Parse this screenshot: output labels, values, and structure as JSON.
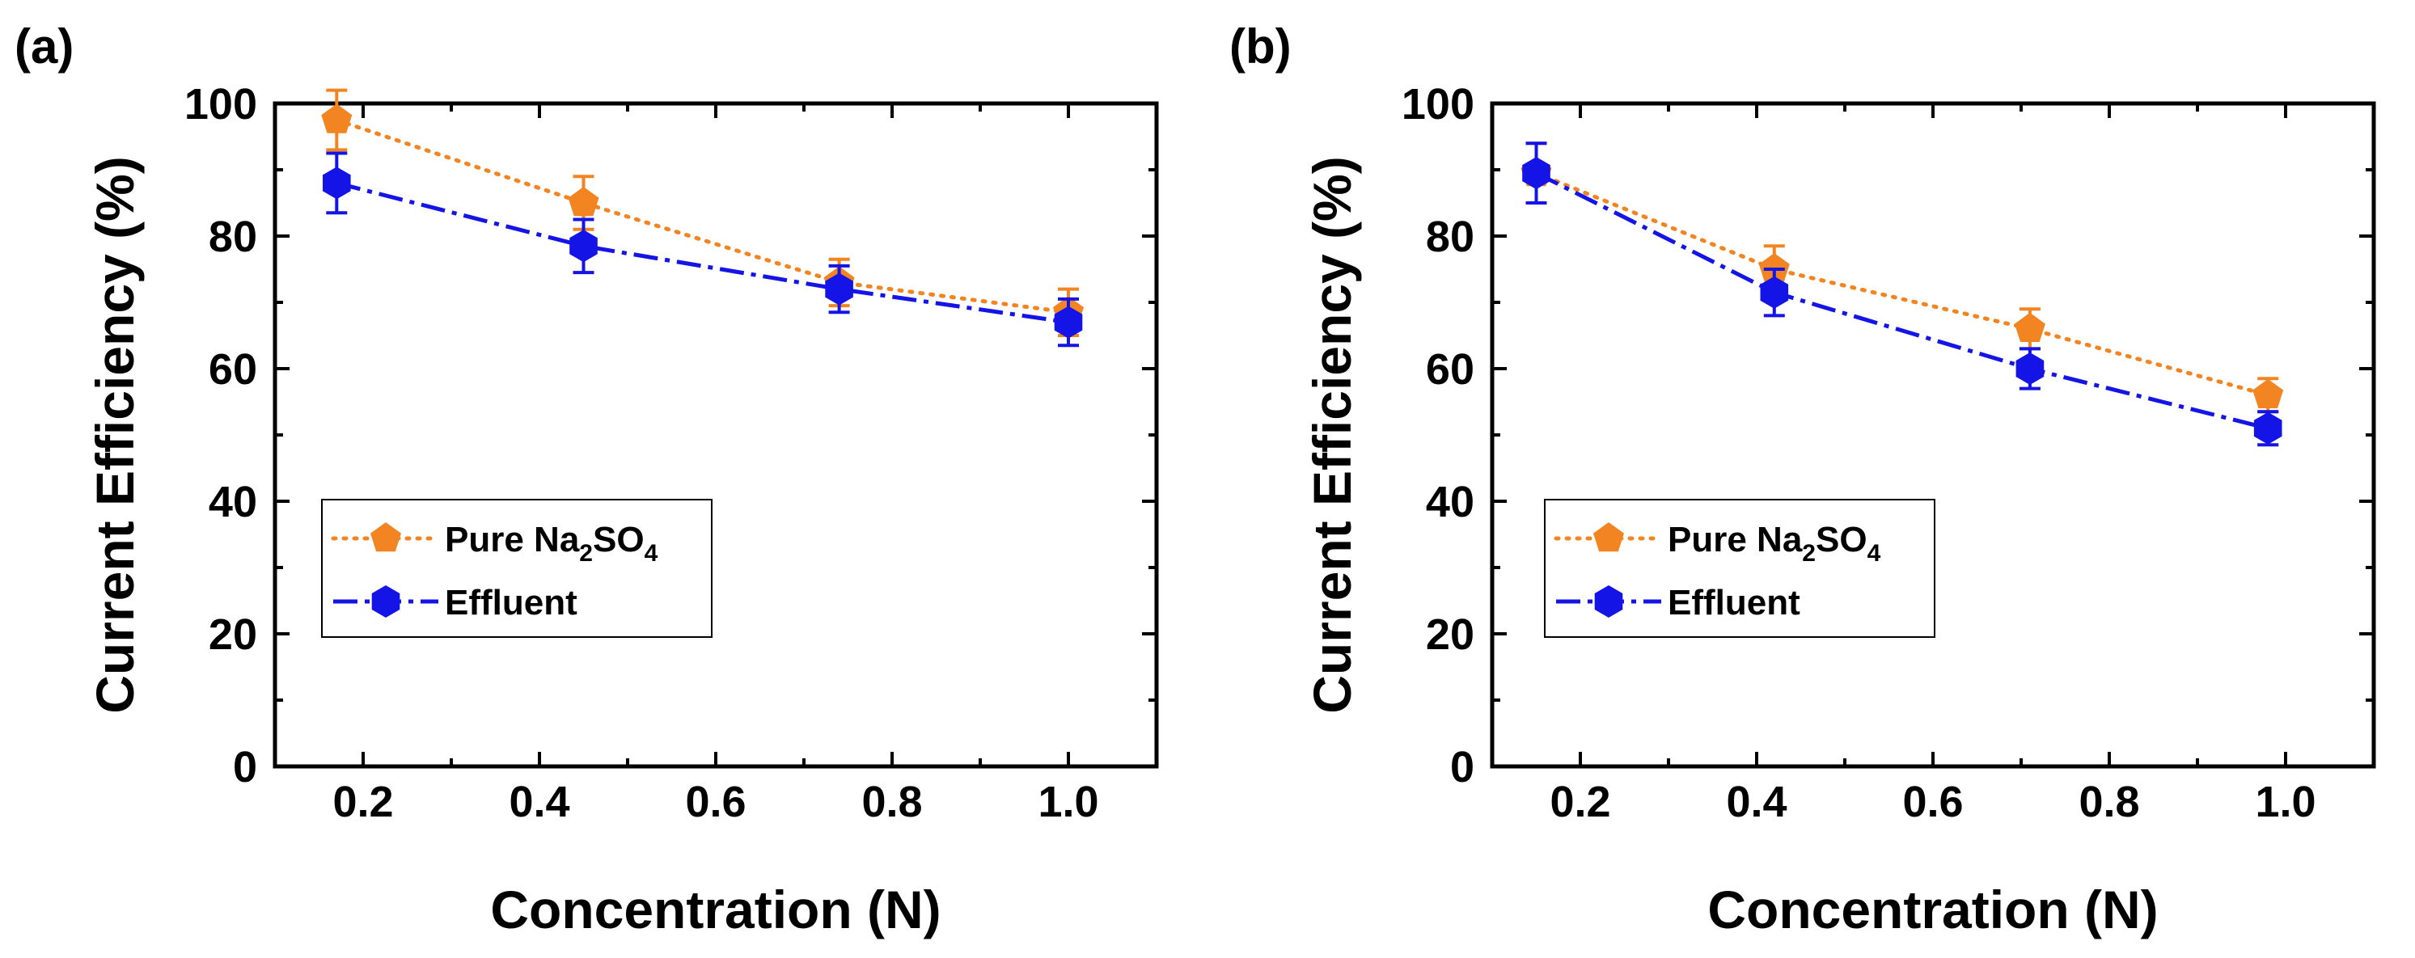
{
  "chart_data": [
    {
      "type": "line",
      "panel_label": "(a)",
      "xlabel": "Concentration (N)",
      "ylabel": "Current Efficiency (%)",
      "xlim": [
        0.1,
        1.1
      ],
      "ylim": [
        0,
        100
      ],
      "xticks": [
        0.2,
        0.4,
        0.6,
        0.8,
        1.0
      ],
      "xtick_labels": [
        "0.2",
        "0.4",
        "0.6",
        "0.8",
        "1.0"
      ],
      "yticks": [
        0,
        20,
        40,
        60,
        80,
        100
      ],
      "ytick_labels": [
        "0",
        "20",
        "40",
        "60",
        "80",
        "100"
      ],
      "legend_position": "lower-left",
      "series": [
        {
          "name": "Pure Na2SO4",
          "legend_main": "Pure Na",
          "legend_sub1": "2",
          "legend_mid": "SO",
          "legend_sub2": "4",
          "marker": "pentagon",
          "line_style": "dotted",
          "color": "#F28522",
          "x": [
            0.17,
            0.45,
            0.74,
            1.0
          ],
          "y": [
            97.5,
            85,
            73,
            68.5
          ],
          "error": [
            4.5,
            4,
            3.5,
            3.5
          ]
        },
        {
          "name": "Effluent",
          "legend_label": "Effluent",
          "marker": "hexagon",
          "line_style": "dashdot",
          "color": "#1414E6",
          "x": [
            0.17,
            0.45,
            0.74,
            1.0
          ],
          "y": [
            88,
            78.5,
            72,
            67
          ],
          "error": [
            4.5,
            4,
            3.5,
            3.5
          ]
        }
      ]
    },
    {
      "type": "line",
      "panel_label": "(b)",
      "xlabel": "Concentration (N)",
      "ylabel": "Current Efficiency (%)",
      "xlim": [
        0.1,
        1.1
      ],
      "ylim": [
        0,
        100
      ],
      "xticks": [
        0.2,
        0.4,
        0.6,
        0.8,
        1.0
      ],
      "xtick_labels": [
        "0.2",
        "0.4",
        "0.6",
        "0.8",
        "1.0"
      ],
      "yticks": [
        0,
        20,
        40,
        60,
        80,
        100
      ],
      "ytick_labels": [
        "0",
        "20",
        "40",
        "60",
        "80",
        "100"
      ],
      "legend_position": "lower-left",
      "series": [
        {
          "name": "Pure Na2SO4",
          "legend_main": "Pure Na",
          "legend_sub1": "2",
          "legend_mid": "SO",
          "legend_sub2": "4",
          "marker": "pentagon",
          "line_style": "dotted",
          "color": "#F28522",
          "x": [
            0.15,
            0.42,
            0.71,
            0.98
          ],
          "y": [
            89.5,
            75,
            66,
            56
          ],
          "error": [
            4.5,
            3.5,
            3,
            2.5
          ]
        },
        {
          "name": "Effluent",
          "legend_label": "Effluent",
          "marker": "hexagon",
          "line_style": "dashdot",
          "color": "#1414E6",
          "x": [
            0.15,
            0.42,
            0.71,
            0.98
          ],
          "y": [
            89.5,
            71.5,
            60,
            51
          ],
          "error": [
            4.5,
            3.5,
            3,
            2.5
          ]
        }
      ]
    }
  ]
}
